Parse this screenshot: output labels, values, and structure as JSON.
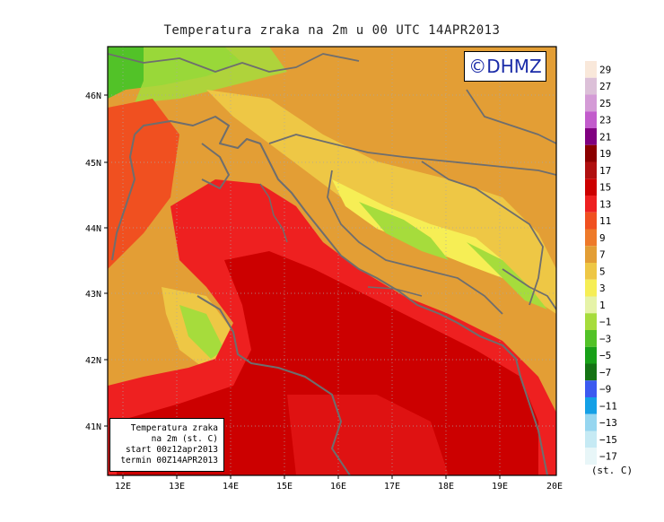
{
  "title": "Temperatura zraka na 2m u 00 UTC 14APR2013",
  "logo": "©DHMZ",
  "info_box": {
    "line1": "Temperatura zraka",
    "line2": "na 2m (st. C)",
    "line3": "start 00z12apr2013",
    "line4": "termin 00Z14APR2013"
  },
  "axes": {
    "lon_ticks": [
      "12E",
      "13E",
      "14E",
      "15E",
      "16E",
      "17E",
      "18E",
      "19E",
      "20E"
    ],
    "lat_ticks": [
      "46N",
      "45N",
      "44N",
      "43N",
      "42N",
      "41N"
    ]
  },
  "legend": {
    "unit": "(st. C)",
    "labels": [
      "29",
      "27",
      "25",
      "23",
      "21",
      "19",
      "17",
      "15",
      "13",
      "11",
      "9",
      "7",
      "5",
      "3",
      "1",
      "−1",
      "−3",
      "−5",
      "−7",
      "−9",
      "−11",
      "−13",
      "−15",
      "−17"
    ],
    "colors": [
      "#f9e8da",
      "#dcc0d8",
      "#d49bd6",
      "#c25ccc",
      "#800080",
      "#8b0000",
      "#b01010",
      "#cc0000",
      "#ee2020",
      "#f05020",
      "#ee7a2a",
      "#e39e35",
      "#eec745",
      "#f6ee55",
      "#e6f3a8",
      "#a6dc3c",
      "#52c228",
      "#18a018",
      "#147214",
      "#3c5af0",
      "#14a0e6",
      "#96d6f0",
      "#c6eaf4",
      "#e8f6f8"
    ]
  }
}
